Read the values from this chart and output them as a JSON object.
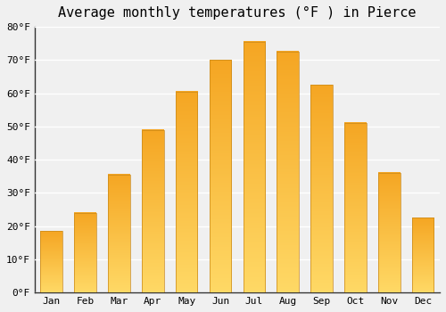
{
  "title": "Average monthly temperatures (°F ) in Pierce",
  "months": [
    "Jan",
    "Feb",
    "Mar",
    "Apr",
    "May",
    "Jun",
    "Jul",
    "Aug",
    "Sep",
    "Oct",
    "Nov",
    "Dec"
  ],
  "values": [
    18.5,
    24,
    35.5,
    49,
    60.5,
    70,
    75.5,
    72.5,
    62.5,
    51,
    36,
    22.5
  ],
  "bar_color_bottom": "#F5A623",
  "bar_color_top": "#FFD966",
  "bar_edge_color": "#C8881A",
  "ylim": [
    0,
    80
  ],
  "yticks": [
    0,
    10,
    20,
    30,
    40,
    50,
    60,
    70,
    80
  ],
  "ytick_labels": [
    "0°F",
    "10°F",
    "20°F",
    "30°F",
    "40°F",
    "50°F",
    "60°F",
    "70°F",
    "80°F"
  ],
  "background_color": "#f0f0f0",
  "plot_bg_color": "#f0f0f0",
  "grid_color": "#ffffff",
  "title_fontsize": 11,
  "tick_fontsize": 8,
  "bar_width": 0.65,
  "font_family": "monospace"
}
